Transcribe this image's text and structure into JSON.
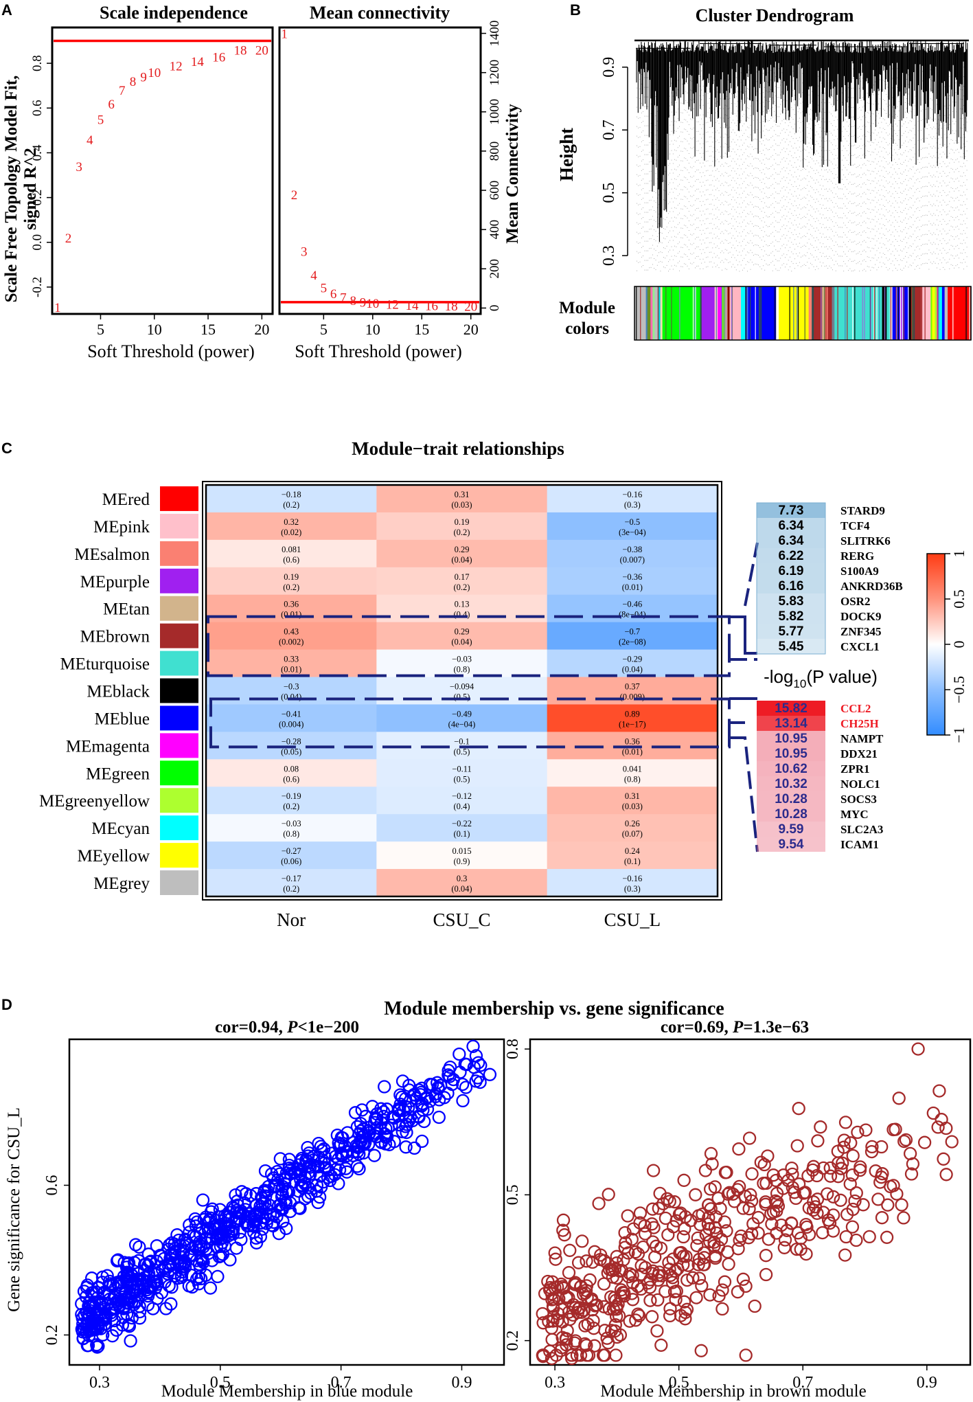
{
  "panels": {
    "A": "A",
    "B": "B",
    "C": "C",
    "D": "D"
  },
  "chart_data": [
    {
      "id": "A1",
      "type": "scatter",
      "title": "Scale independence",
      "xlabel": "Soft Threshold (power)",
      "ylabel_lines": [
        "Scale Free Topology Model Fit,",
        "signed R^2"
      ],
      "xlim": [
        0.5,
        21
      ],
      "ylim": [
        -0.32,
        0.96
      ],
      "xticks": [
        5,
        10,
        15,
        20
      ],
      "yticks": [
        -0.2,
        0.0,
        0.2,
        0.4,
        0.6,
        0.8
      ],
      "ytick_labels": [
        "-0.2",
        "0.0",
        "0.2",
        "0.4",
        "0.6",
        "0.8"
      ],
      "hline": 0.9,
      "labels": [
        "1",
        "2",
        "3",
        "4",
        "5",
        "6",
        "7",
        "8",
        "9",
        "10",
        "12",
        "14",
        "16",
        "18",
        "20"
      ],
      "x": [
        1,
        2,
        3,
        4,
        5,
        6,
        7,
        8,
        9,
        10,
        12,
        14,
        16,
        18,
        20
      ],
      "y": [
        -0.29,
        0.02,
        0.34,
        0.46,
        0.55,
        0.62,
        0.68,
        0.72,
        0.74,
        0.76,
        0.79,
        0.81,
        0.83,
        0.86,
        0.86
      ]
    },
    {
      "id": "A2",
      "type": "scatter",
      "title": "Mean connectivity",
      "xlabel": "Soft Threshold (power)",
      "ylabel": "Mean Connectivity",
      "xlim": [
        0.5,
        21
      ],
      "ylim": [
        -30,
        1430
      ],
      "xticks": [
        5,
        10,
        15,
        20
      ],
      "yticks": [
        0,
        200,
        400,
        600,
        800,
        1000,
        1200,
        1400
      ],
      "hline": 30,
      "labels": [
        "1",
        "2",
        "3",
        "4",
        "5",
        "6",
        "7",
        "8",
        "9",
        "10",
        "12",
        "14",
        "16",
        "18",
        "20"
      ],
      "x": [
        1,
        2,
        3,
        4,
        5,
        6,
        7,
        8,
        9,
        10,
        12,
        14,
        16,
        18,
        20
      ],
      "y": [
        1400,
        580,
        290,
        170,
        105,
        75,
        55,
        40,
        32,
        26,
        20,
        16,
        14,
        12,
        10
      ]
    },
    {
      "id": "B",
      "type": "dendrogram",
      "title": "Cluster Dendrogram",
      "ylabel": "Height",
      "ylim": [
        0.25,
        1.0
      ],
      "yticks": [
        0.3,
        0.5,
        0.7,
        0.9
      ],
      "ytick_labels": [
        "0.3",
        "0.5",
        "0.7",
        "0.9"
      ],
      "colorbar_label_lines": [
        "Module",
        "colors"
      ],
      "module_color_blocks": [
        {
          "color": "#bebebe",
          "w": 2.2
        },
        {
          "color": "#4682b4",
          "w": 0.3
        },
        {
          "color": "#6b8e23",
          "w": 0.6
        },
        {
          "color": "#ff69b4",
          "w": 0.4
        },
        {
          "color": "#90ee90",
          "w": 0.4
        },
        {
          "color": "#bebebe",
          "w": 0.6
        },
        {
          "color": "#00ced1",
          "w": 0.5
        },
        {
          "color": "#f5deb3",
          "w": 0.4
        },
        {
          "color": "#00ff00",
          "w": 6.2
        },
        {
          "color": "#ffffff",
          "w": 0.3
        },
        {
          "color": "#00ff00",
          "w": 0.8
        },
        {
          "color": "#2f4f4f",
          "w": 0.3
        },
        {
          "color": "#a020f0",
          "w": 2.5
        },
        {
          "color": "#ffc0cb",
          "w": 0.6
        },
        {
          "color": "#ff00ff",
          "w": 0.8
        },
        {
          "color": "#7cfc00",
          "w": 0.6
        },
        {
          "color": "#d2b48c",
          "w": 0.5
        },
        {
          "color": "#8b0000",
          "w": 0.4
        },
        {
          "color": "#ffb6c1",
          "w": 2.2
        },
        {
          "color": "#00ffff",
          "w": 0.8
        },
        {
          "color": "#4169e1",
          "w": 0.6
        },
        {
          "color": "#0000ff",
          "w": 5.0
        },
        {
          "color": "#000080",
          "w": 0.4
        },
        {
          "color": "#ffffff",
          "w": 0.5
        },
        {
          "color": "#ffff00",
          "w": 5.8
        },
        {
          "color": "#fa8072",
          "w": 0.6
        },
        {
          "color": "#2f4f4f",
          "w": 0.4
        },
        {
          "color": "#a52a2a",
          "w": 1.6
        },
        {
          "color": "#d2b48c",
          "w": 0.5
        },
        {
          "color": "#fa8072",
          "w": 0.6
        },
        {
          "color": "#a52a2a",
          "w": 0.8
        },
        {
          "color": "#708090",
          "w": 0.5
        },
        {
          "color": "#40e0d0",
          "w": 9.2
        },
        {
          "color": "#000000",
          "w": 0.9
        },
        {
          "color": "#40e0d0",
          "w": 0.6
        },
        {
          "color": "#ffffff",
          "w": 0.5
        },
        {
          "color": "#0000ff",
          "w": 1.4
        },
        {
          "color": "#a020f0",
          "w": 0.6
        },
        {
          "color": "#0000ff",
          "w": 1.2
        },
        {
          "color": "#000000",
          "w": 0.4
        },
        {
          "color": "#a52a2a",
          "w": 2.0
        },
        {
          "color": "#ffc0cb",
          "w": 1.8
        },
        {
          "color": "#7cfc00",
          "w": 0.3
        },
        {
          "color": "#ffff00",
          "w": 0.5
        },
        {
          "color": "#adff2f",
          "w": 0.4
        },
        {
          "color": "#ff1493",
          "w": 0.4
        },
        {
          "color": "#00ffff",
          "w": 0.6
        },
        {
          "color": "#0000ff",
          "w": 0.5
        },
        {
          "color": "#bebebe",
          "w": 0.6
        },
        {
          "color": "#ff0000",
          "w": 4.5
        }
      ]
    },
    {
      "id": "C",
      "type": "heatmap",
      "title": "Module−trait relationships",
      "rows": [
        "MEred",
        "MEpink",
        "MEsalmon",
        "MEpurple",
        "MEtan",
        "MEbrown",
        "MEturquoise",
        "MEblack",
        "MEblue",
        "MEmagenta",
        "MEgreen",
        "MEgreenyellow",
        "MEcyan",
        "MEyellow",
        "MEgrey"
      ],
      "row_colors": [
        "#ff0000",
        "#ffc0cb",
        "#fa8072",
        "#a020f0",
        "#d2b48c",
        "#a52a2a",
        "#40e0d0",
        "#000000",
        "#0000ff",
        "#ff00ff",
        "#00ff00",
        "#adff2f",
        "#00ffff",
        "#ffff00",
        "#bebebe"
      ],
      "cols": [
        "Nor",
        "CSU_C",
        "CSU_L"
      ],
      "corr": [
        [
          "−0.18",
          "0.31",
          "−0.16"
        ],
        [
          "0.32",
          "0.19",
          "−0.5"
        ],
        [
          "0.081",
          "0.29",
          "−0.38"
        ],
        [
          "0.19",
          "0.17",
          "−0.36"
        ],
        [
          "0.36",
          "0.13",
          "−0.46"
        ],
        [
          "0.43",
          "0.29",
          "−0.7"
        ],
        [
          "0.33",
          "−0.03",
          "−0.29"
        ],
        [
          "−0.3",
          "−0.094",
          "0.37"
        ],
        [
          "−0.41",
          "−0.49",
          "0.89"
        ],
        [
          "−0.28",
          "−0.1",
          "0.36"
        ],
        [
          "0.08",
          "−0.11",
          "0.041"
        ],
        [
          "−0.19",
          "−0.12",
          "0.31"
        ],
        [
          "−0.03",
          "−0.22",
          "0.26"
        ],
        [
          "−0.27",
          "0.015",
          "0.24"
        ],
        [
          "−0.17",
          "0.3",
          "−0.16"
        ]
      ],
      "corr_values": [
        [
          -0.18,
          0.31,
          -0.16
        ],
        [
          0.32,
          0.19,
          -0.5
        ],
        [
          0.081,
          0.29,
          -0.38
        ],
        [
          0.19,
          0.17,
          -0.36
        ],
        [
          0.36,
          0.13,
          -0.46
        ],
        [
          0.43,
          0.29,
          -0.7
        ],
        [
          0.33,
          -0.03,
          -0.29
        ],
        [
          -0.3,
          -0.094,
          0.37
        ],
        [
          -0.41,
          -0.49,
          0.89
        ],
        [
          -0.28,
          -0.1,
          0.36
        ],
        [
          0.08,
          -0.11,
          0.041
        ],
        [
          -0.19,
          -0.12,
          0.31
        ],
        [
          -0.03,
          -0.22,
          0.26
        ],
        [
          -0.27,
          0.015,
          0.24
        ],
        [
          -0.17,
          0.3,
          -0.16
        ]
      ],
      "pvals": [
        [
          "(0.2)",
          "(0.03)",
          "(0.3)"
        ],
        [
          "(0.02)",
          "(0.2)",
          "(3e−04)"
        ],
        [
          "(0.6)",
          "(0.04)",
          "(0.007)"
        ],
        [
          "(0.2)",
          "(0.2)",
          "(0.01)"
        ],
        [
          "(0.01)",
          "(0.4)",
          "(8e−04)"
        ],
        [
          "(0.002)",
          "(0.04)",
          "(2e−08)"
        ],
        [
          "(0.01)",
          "(0.8)",
          "(0.04)"
        ],
        [
          "(0.04)",
          "(0.5)",
          "(0.009)"
        ],
        [
          "(0.004)",
          "(4e−04)",
          "(1e−17)"
        ],
        [
          "(0.05)",
          "(0.5)",
          "(0.01)"
        ],
        [
          "(0.6)",
          "(0.5)",
          "(0.8)"
        ],
        [
          "(0.2)",
          "(0.4)",
          "(0.03)"
        ],
        [
          "(0.8)",
          "(0.1)",
          "(0.07)"
        ],
        [
          "(0.06)",
          "(0.9)",
          "(0.1)"
        ],
        [
          "(0.2)",
          "(0.04)",
          "(0.3)"
        ]
      ],
      "legend": {
        "ticks": [
          1,
          0.5,
          0,
          -0.5,
          -1
        ],
        "tick_labels": [
          "1",
          "0.5",
          "0",
          "−0.5",
          "−1"
        ]
      },
      "highlight_rows": [
        "MEbrown",
        "MEblue"
      ],
      "pvalue_label": "-log",
      "pvalue_label_sub": "10",
      "pvalue_label_tail": "(P value)",
      "brown_genes": [
        {
          "value": "7.73",
          "gene": "STARD9"
        },
        {
          "value": "6.34",
          "gene": "TCF4"
        },
        {
          "value": "6.34",
          "gene": "SLITRK6"
        },
        {
          "value": "6.22",
          "gene": "RERG"
        },
        {
          "value": "6.19",
          "gene": "S100A9"
        },
        {
          "value": "6.16",
          "gene": "ANKRD36B"
        },
        {
          "value": "5.83",
          "gene": "OSR2"
        },
        {
          "value": "5.82",
          "gene": "DOCK9"
        },
        {
          "value": "5.77",
          "gene": "ZNF345"
        },
        {
          "value": "5.45",
          "gene": "CXCL1"
        }
      ],
      "blue_genes": [
        {
          "value": "15.82",
          "gene": "CCL2",
          "highlight": true
        },
        {
          "value": "13.14",
          "gene": "CH25H",
          "highlight": true
        },
        {
          "value": "10.95",
          "gene": "NAMPT"
        },
        {
          "value": "10.95",
          "gene": "DDX21"
        },
        {
          "value": "10.62",
          "gene": "ZPR1"
        },
        {
          "value": "10.32",
          "gene": "NOLC1"
        },
        {
          "value": "10.28",
          "gene": "SOCS3"
        },
        {
          "value": "10.28",
          "gene": "MYC"
        },
        {
          "value": "9.59",
          "gene": "SLC2A3"
        },
        {
          "value": "9.54",
          "gene": "ICAM1"
        }
      ]
    },
    {
      "id": "D",
      "type": "scatter",
      "title": "Module membership vs. gene significance",
      "left": {
        "subtitle_pre": "cor=0.94, ",
        "subtitle_p": "P",
        "subtitle_post": "<1e−200",
        "xlabel": "Module Membership in blue module",
        "ylabel": "Gene significance for CSU_L",
        "color": "#0000ff",
        "xlim": [
          0.25,
          0.97
        ],
        "ylim": [
          0.12,
          0.99
        ],
        "xticks": [
          0.3,
          0.5,
          0.7,
          0.9
        ],
        "yticks": [
          0.2,
          0.6
        ],
        "n_points": 700,
        "slope": 1.06,
        "intercept": -0.06,
        "xmin": 0.27,
        "xmax": 0.95
      },
      "right": {
        "subtitle_pre": "cor=0.69, ",
        "subtitle_p": "P",
        "subtitle_post": "=1.3e−63",
        "xlabel": "Module Membership in brown module",
        "color": "#a52a2a",
        "xlim": [
          0.26,
          0.97
        ],
        "ylim": [
          0.15,
          0.82
        ],
        "xticks": [
          0.3,
          0.5,
          0.7,
          0.9
        ],
        "yticks": [
          0.2,
          0.5,
          0.8
        ],
        "n_points": 450,
        "slope": 0.58,
        "intercept": 0.08,
        "xmin": 0.28,
        "xmax": 0.95
      }
    }
  ]
}
